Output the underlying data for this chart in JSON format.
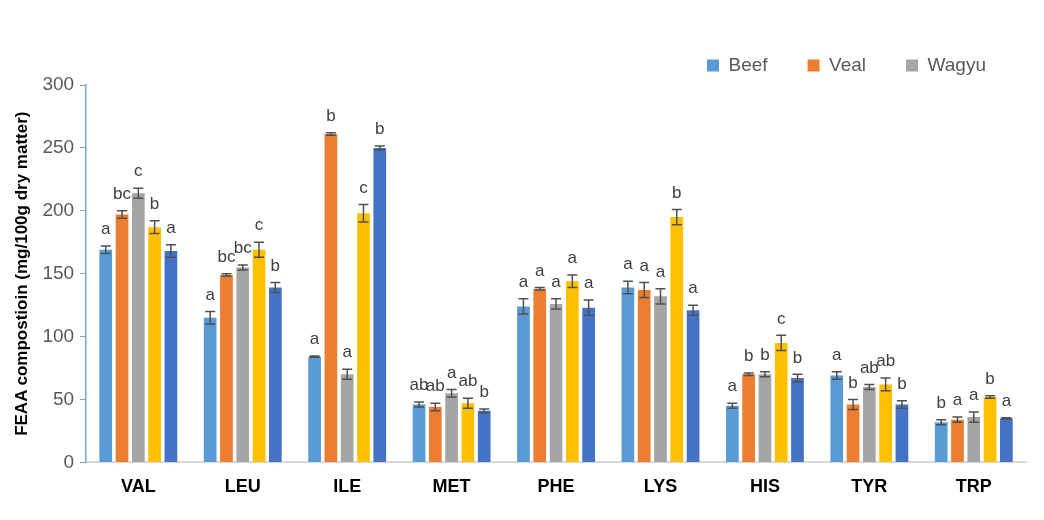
{
  "chart_data": {
    "type": "bar",
    "ylabel": "FEAA compostioin (mg/100g dry matter)",
    "categories": [
      "VAL",
      "LEU",
      "ILE",
      "MET",
      "PHE",
      "LYS",
      "HIS",
      "TYR",
      "TRP"
    ],
    "ylim": [
      0,
      300
    ],
    "yticks": [
      0,
      50,
      100,
      150,
      200,
      250,
      300
    ],
    "grid": false,
    "legend": "top right",
    "series": [
      {
        "name": "Beef",
        "color": "#5b9bd5",
        "values": [
          169,
          115,
          84,
          46,
          124,
          139,
          45,
          69,
          32
        ],
        "errors": [
          3,
          5,
          0.5,
          2,
          6,
          5,
          2,
          3,
          2
        ],
        "value_labels": [
          "a",
          "a",
          "a",
          "ab",
          "a",
          "a",
          "a",
          "a",
          "b"
        ]
      },
      {
        "name": "Veal",
        "color": "#ed7d31",
        "values": [
          197,
          149,
          261,
          44,
          138,
          137,
          70,
          46,
          34
        ],
        "errors": [
          3,
          1,
          1,
          3,
          1,
          6,
          1,
          4,
          2
        ],
        "value_labels": [
          "bc",
          "bc",
          "b",
          "ab",
          "a",
          "a",
          "b",
          "b",
          "a"
        ]
      },
      {
        "name": "Wagyu",
        "color": "#a5a5a5",
        "values": [
          214,
          155,
          70,
          55,
          126,
          132,
          70,
          60,
          36
        ],
        "errors": [
          4,
          2,
          4,
          3,
          4,
          6,
          2,
          2,
          4
        ],
        "value_labels": [
          "c",
          "bc",
          "a",
          "a",
          "a",
          "a",
          "b",
          "ab",
          "a"
        ]
      },
      {
        "color": "#ffc000",
        "values": [
          187,
          169,
          198,
          47,
          144,
          195,
          95,
          62,
          52
        ],
        "errors": [
          5,
          6,
          7,
          4,
          5,
          6,
          6,
          5,
          1
        ],
        "value_labels": [
          "b",
          "c",
          "c",
          "ab",
          "a",
          "b",
          "c",
          "ab",
          "b"
        ]
      },
      {
        "color": "#4472c4",
        "values": [
          168,
          139,
          250,
          41,
          123,
          121,
          67,
          46,
          35
        ],
        "errors": [
          5,
          4,
          1.5,
          1.5,
          6,
          4,
          3,
          3,
          0.5
        ],
        "value_labels": [
          "a",
          "b",
          "b",
          "b",
          "a",
          "a",
          "b",
          "b",
          "a"
        ]
      }
    ]
  }
}
